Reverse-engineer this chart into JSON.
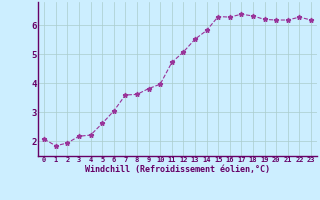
{
  "x": [
    0,
    1,
    2,
    3,
    4,
    5,
    6,
    7,
    8,
    9,
    10,
    11,
    12,
    13,
    14,
    15,
    16,
    17,
    18,
    19,
    20,
    21,
    22,
    23
  ],
  "y": [
    2.08,
    1.85,
    1.95,
    2.18,
    2.22,
    2.62,
    3.05,
    3.6,
    3.62,
    3.82,
    3.97,
    4.72,
    5.08,
    5.52,
    5.82,
    6.3,
    6.28,
    6.38,
    6.32,
    6.2,
    6.18,
    6.18,
    6.28,
    6.18
  ],
  "line_color": "#993399",
  "marker": "*",
  "marker_size": 3.5,
  "bg_color": "#cceeff",
  "grid_color": "#aacccc",
  "xlabel": "Windchill (Refroidissement éolien,°C)",
  "xlabel_color": "#660066",
  "tick_color": "#660066",
  "spine_color": "#660066",
  "xlim": [
    -0.5,
    23.5
  ],
  "ylim": [
    1.5,
    6.8
  ],
  "yticks": [
    2,
    3,
    4,
    5,
    6
  ],
  "xticks": [
    0,
    1,
    2,
    3,
    4,
    5,
    6,
    7,
    8,
    9,
    10,
    11,
    12,
    13,
    14,
    15,
    16,
    17,
    18,
    19,
    20,
    21,
    22,
    23
  ],
  "xtick_labels": [
    "0",
    "1",
    "2",
    "3",
    "4",
    "5",
    "6",
    "7",
    "8",
    "9",
    "10",
    "11",
    "12",
    "13",
    "14",
    "15",
    "16",
    "17",
    "18",
    "19",
    "20",
    "21",
    "22",
    "23"
  ]
}
